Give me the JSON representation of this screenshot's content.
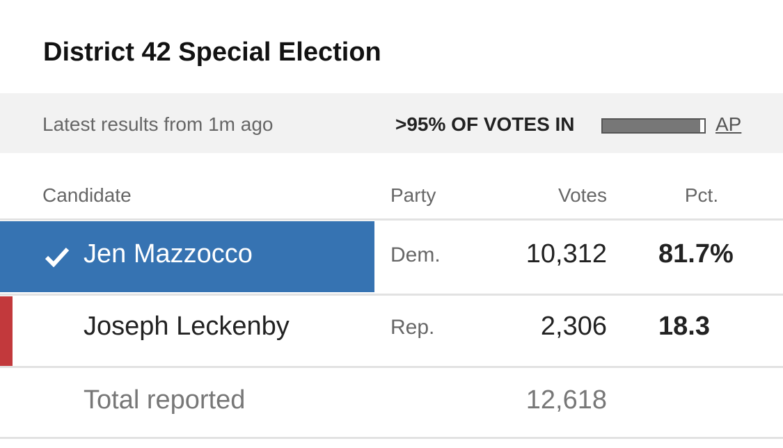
{
  "header": {
    "title": "District 42 Special Election"
  },
  "status": {
    "updated": "Latest results from 1m ago",
    "votes_in": ">95% OF VOTES IN",
    "source": "AP"
  },
  "table": {
    "columns": [
      "Candidate",
      "Party",
      "Votes",
      "Pct."
    ],
    "rows": [
      {
        "name": "Jen Mazzocco",
        "party": "Dem.",
        "votes": "10,312",
        "pct": "81.7%",
        "winner": true,
        "color": "#3673b2"
      },
      {
        "name": "Joseph Leckenby",
        "party": "Rep.",
        "votes": "2,306",
        "pct": "18.3",
        "winner": false,
        "color": "#c2393c"
      }
    ],
    "total": {
      "label": "Total reported",
      "votes": "12,618"
    }
  }
}
